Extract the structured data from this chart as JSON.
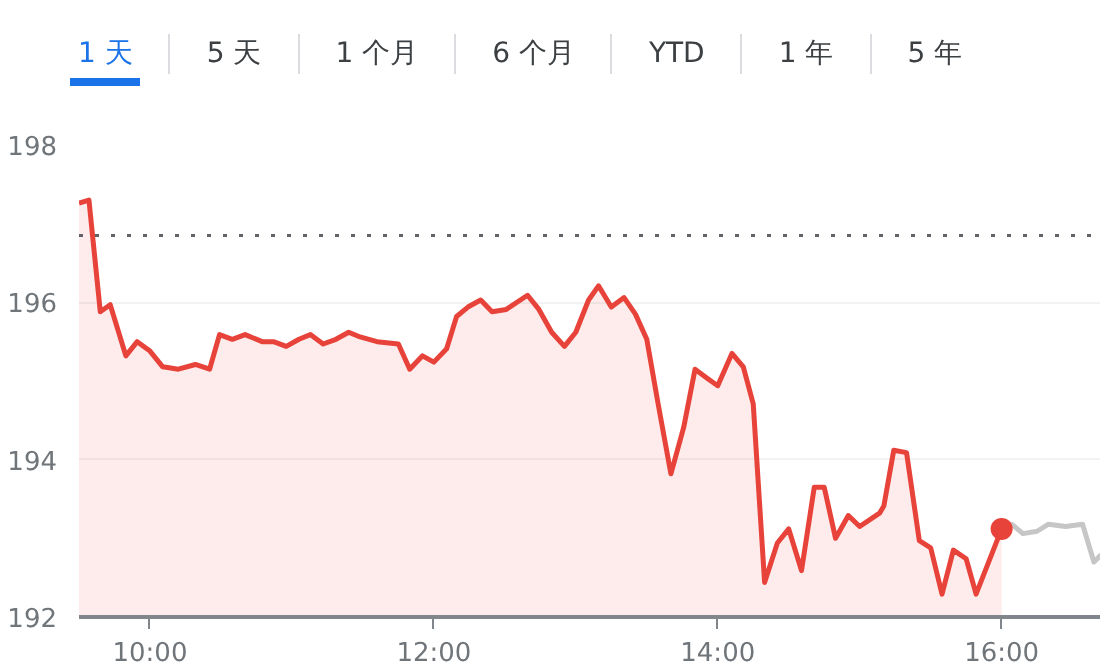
{
  "chart_data": {
    "type": "area",
    "annotations": [
      "1 天",
      "5 天",
      "1 个月",
      "6 个月",
      "YTD",
      "1 年",
      "5 年"
    ],
    "xlim": [
      9.5,
      16.7
    ],
    "ylim": [
      192,
      198
    ],
    "xticks": [
      {
        "value": 10,
        "label": "10:00"
      },
      {
        "value": 12,
        "label": "12:00"
      },
      {
        "value": 14,
        "label": "14:00"
      },
      {
        "value": 16,
        "label": "16:00"
      }
    ],
    "yticks": [
      192,
      194,
      196,
      198
    ],
    "grid": "y",
    "ref_lines": [
      {
        "axis": "y",
        "value": 196.85,
        "color": "#5f6368",
        "line_style": "dotted"
      }
    ],
    "series": [
      {
        "color": "#e8433a",
        "x": [
          9.5,
          9.57,
          9.65,
          9.72,
          9.83,
          9.91,
          10.0,
          10.09,
          10.2,
          10.32,
          10.42,
          10.49,
          10.58,
          10.67,
          10.79,
          10.87,
          10.96,
          11.05,
          11.13,
          11.22,
          11.31,
          11.4,
          11.48,
          11.6,
          11.75,
          11.83,
          11.92,
          12.0,
          12.09,
          12.16,
          12.24,
          12.33,
          12.41,
          12.51,
          12.66,
          12.74,
          12.83,
          12.92,
          13.0,
          13.09,
          13.16,
          13.25,
          13.34,
          13.42,
          13.5,
          13.58,
          13.67,
          13.76,
          13.84,
          13.93,
          14.0,
          14.1,
          14.18,
          14.25,
          14.33,
          14.42,
          14.5,
          14.59,
          14.68,
          14.75,
          14.83,
          14.92,
          15.0,
          15.14,
          15.17,
          15.24,
          15.33,
          15.42,
          15.5,
          15.58,
          15.66,
          15.75,
          15.82,
          16.0
        ],
        "values": [
          197.26,
          197.3,
          195.88,
          195.97,
          195.32,
          195.5,
          195.38,
          195.18,
          195.15,
          195.21,
          195.15,
          195.59,
          195.53,
          195.59,
          195.5,
          195.5,
          195.44,
          195.53,
          195.59,
          195.47,
          195.53,
          195.62,
          195.56,
          195.5,
          195.47,
          195.15,
          195.32,
          195.24,
          195.41,
          195.82,
          195.94,
          196.03,
          195.88,
          195.91,
          196.09,
          195.91,
          195.62,
          195.44,
          195.62,
          196.03,
          196.21,
          195.94,
          196.06,
          195.85,
          195.53,
          194.71,
          193.82,
          194.41,
          195.15,
          195.03,
          194.94,
          195.35,
          195.18,
          194.71,
          192.44,
          192.94,
          193.12,
          192.59,
          193.65,
          193.65,
          193.0,
          193.29,
          193.15,
          193.32,
          193.41,
          194.12,
          194.09,
          192.97,
          192.88,
          192.29,
          192.85,
          192.74,
          192.29,
          193.12
        ]
      },
      {
        "type": "line",
        "color": "#c6c6c6",
        "x": [
          16.0,
          16.07,
          16.15,
          16.25,
          16.33,
          16.45,
          16.57,
          16.65,
          16.7
        ],
        "values": [
          193.12,
          193.18,
          193.06,
          193.09,
          193.18,
          193.15,
          193.18,
          192.7,
          192.79
        ]
      },
      {
        "type": "scatter",
        "color": "#e8433a",
        "marker": "circle",
        "x": [
          16.0
        ],
        "values": [
          193.12
        ]
      }
    ]
  }
}
